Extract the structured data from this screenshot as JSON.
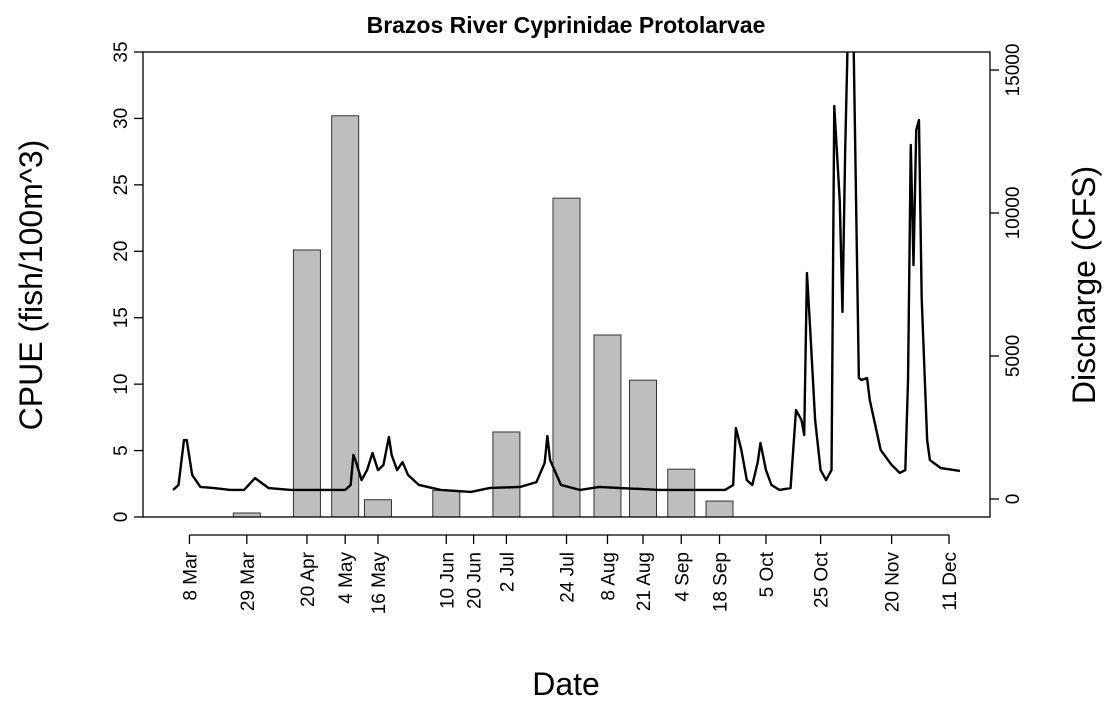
{
  "chart_data": {
    "type": "bar",
    "title": "Brazos River Cyprinidae Protolarvae",
    "x_label": "Date",
    "y_label": "CPUE (fish/100m^3)",
    "y2_label": "Discharge (CFS)",
    "xlim": [
      50,
      360
    ],
    "ylim": [
      0,
      35
    ],
    "y2lim": [
      -630,
      15630
    ],
    "xticks": [
      {
        "value": 67,
        "label": "8 Mar"
      },
      {
        "value": 88,
        "label": "29 Mar"
      },
      {
        "value": 110,
        "label": "20 Apr"
      },
      {
        "value": 124,
        "label": "4 May"
      },
      {
        "value": 136,
        "label": "16 May"
      },
      {
        "value": 161,
        "label": "10 Jun"
      },
      {
        "value": 171,
        "label": "20 Jun"
      },
      {
        "value": 183,
        "label": "2 Jul"
      },
      {
        "value": 205,
        "label": "24 Jul"
      },
      {
        "value": 220,
        "label": "8 Aug"
      },
      {
        "value": 233,
        "label": "21 Aug"
      },
      {
        "value": 247,
        "label": "4 Sep"
      },
      {
        "value": 261,
        "label": "18 Sep"
      },
      {
        "value": 278,
        "label": "5 Oct"
      },
      {
        "value": 298,
        "label": "25 Oct"
      },
      {
        "value": 324,
        "label": "20 Nov"
      },
      {
        "value": 345,
        "label": "11 Dec"
      }
    ],
    "yticks": [
      0,
      5,
      10,
      15,
      20,
      25,
      30,
      35
    ],
    "y2ticks": [
      0,
      5000,
      10000,
      15000
    ],
    "series": [
      {
        "type": "bar",
        "color": "#bebebe",
        "x": [
          88,
          110,
          124,
          136,
          161,
          183,
          205,
          220,
          233,
          247,
          261
        ],
        "values": [
          0.3,
          20.1,
          30.2,
          1.3,
          2.0,
          6.4,
          24.0,
          13.7,
          10.3,
          3.6,
          1.2
        ]
      },
      {
        "type": "line",
        "axis": "y2",
        "color": "#000000",
        "x": [
          61,
          63,
          65,
          66,
          68,
          71,
          76,
          82,
          87,
          91,
          93,
          96,
          104,
          115,
          124,
          126,
          127,
          128,
          130,
          132,
          134,
          136,
          138,
          140,
          141,
          143,
          145,
          147,
          151,
          159,
          170,
          177,
          188,
          194,
          197,
          198,
          199,
          203,
          210,
          217,
          225,
          232,
          239,
          254,
          263,
          266,
          267,
          269,
          271,
          273,
          275,
          276,
          278,
          280,
          283,
          287,
          289,
          291,
          292,
          293,
          294,
          296,
          298,
          300,
          302,
          303,
          305,
          306,
          307,
          308,
          310,
          312,
          313,
          315,
          316,
          320,
          324,
          327,
          329,
          330,
          331,
          332,
          333,
          334,
          335,
          337,
          338,
          342,
          349
        ],
        "values": [
          315,
          490,
          2060,
          2060,
          840,
          420,
          380,
          315,
          315,
          730,
          590,
          380,
          315,
          315,
          315,
          490,
          1540,
          1290,
          660,
          1010,
          1610,
          1010,
          1190,
          2170,
          1540,
          1010,
          1290,
          840,
          490,
          315,
          245,
          385,
          420,
          590,
          1260,
          2200,
          1360,
          490,
          315,
          420,
          380,
          350,
          315,
          315,
          315,
          490,
          2480,
          1710,
          660,
          490,
          1290,
          1960,
          1010,
          490,
          315,
          380,
          3110,
          2760,
          2240,
          7900,
          6260,
          2760,
          1010,
          660,
          1010,
          13740,
          10450,
          6540,
          12200,
          16400,
          16400,
          4230,
          4160,
          4230,
          3460,
          1710,
          1190,
          910,
          1010,
          4160,
          12380,
          8180,
          12900,
          13250,
          7000,
          2060,
          1360,
          1080,
          980
        ]
      }
    ]
  }
}
